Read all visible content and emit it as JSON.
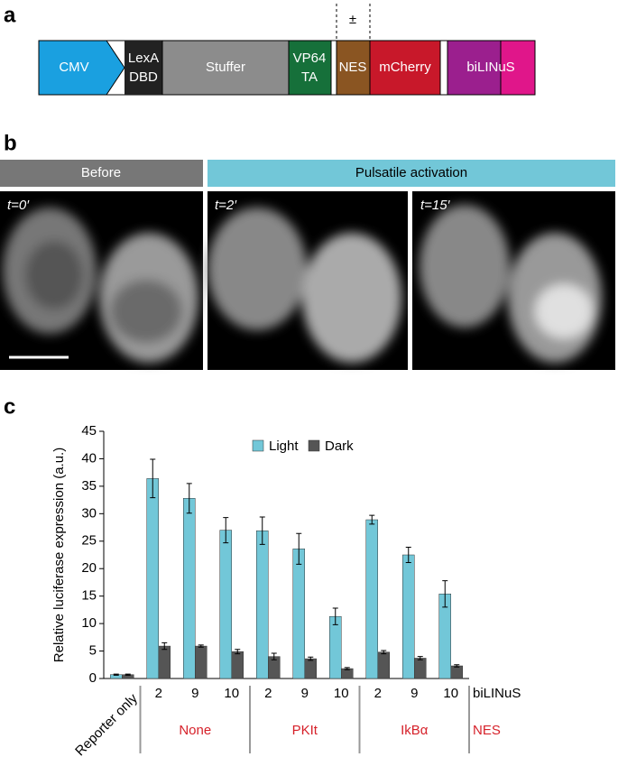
{
  "panel_a": {
    "label": "a",
    "optional": "±",
    "blocks": [
      [
        "CMV"
      ],
      [
        "LexA",
        "DBD"
      ],
      [
        "Stuffer"
      ],
      [
        "VP64",
        "TA"
      ],
      [
        "NES"
      ],
      [
        "mCherry"
      ],
      [
        "biLINuS"
      ]
    ]
  },
  "panel_b": {
    "label": "b",
    "before": "Before",
    "after": "Pulsatile activation",
    "times": [
      "t=0′",
      "t=2′",
      "t=15′"
    ]
  },
  "panel_c": {
    "label": "c"
  },
  "chart_data": {
    "type": "bar",
    "ylabel": "Relative luciferase expression (a.u.)",
    "categories": [
      "Reporter only",
      "2",
      "9",
      "10",
      "2",
      "9",
      "10",
      "2",
      "9",
      "10"
    ],
    "category_axis_label": "biLINuS",
    "groups": [
      "None",
      "PKIt",
      "IkBα"
    ],
    "group_axis_label": "NES",
    "series": [
      {
        "name": "Light",
        "color": "#72c7d8",
        "values": [
          0.7,
          36.4,
          32.8,
          27.0,
          26.9,
          23.6,
          11.3,
          28.9,
          22.5,
          15.4
        ],
        "errors": [
          0.1,
          3.5,
          2.7,
          2.3,
          2.5,
          2.8,
          1.5,
          0.8,
          1.4,
          2.4
        ]
      },
      {
        "name": "Dark",
        "color": "#555555",
        "values": [
          0.7,
          5.9,
          5.9,
          4.9,
          4.0,
          3.6,
          1.8,
          4.8,
          3.7,
          2.3
        ],
        "errors": [
          0.1,
          0.6,
          0.2,
          0.4,
          0.6,
          0.3,
          0.2,
          0.3,
          0.3,
          0.2
        ]
      }
    ],
    "ylim": [
      0,
      45
    ],
    "yticks": [
      0,
      5,
      10,
      15,
      20,
      25,
      30,
      35,
      40,
      45
    ],
    "legend": "top"
  }
}
